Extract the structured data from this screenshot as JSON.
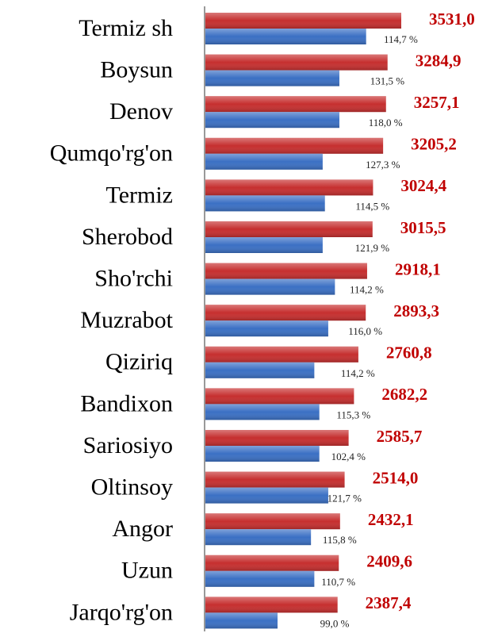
{
  "chart_data": {
    "type": "hbar",
    "categories": [
      "Termiz sh",
      "Boysun",
      "Denov",
      "Qumqo'rg'on",
      "Termiz",
      "Sherobod",
      "Sho'rchi",
      "Muzrabot",
      "Qiziriq",
      "Bandixon",
      "Sariosiyo",
      "Oltinsoy",
      "Angor",
      "Uzun",
      "Jarqo'rg'on"
    ],
    "series": [
      {
        "color": "#c62f2f",
        "values": [
          3531.0,
          3284.9,
          3257.1,
          3205.2,
          3024.4,
          3015.5,
          2918.1,
          2893.3,
          2760.8,
          2682.2,
          2585.7,
          2514.0,
          2432.1,
          2409.6,
          2387.4
        ],
        "value_labels": [
          "3531,0",
          "3284,9",
          "3257,1",
          "3205,2",
          "3024,4",
          "3015,5",
          "2918,1",
          "2893,3",
          "2760,8",
          "2682,2",
          "2585,7",
          "2514,0",
          "2432,1",
          "2409,6",
          "2387,4"
        ]
      },
      {
        "color": "#3b70c4",
        "values": [
          2900,
          2420,
          2420,
          2120,
          2160,
          2120,
          2340,
          2220,
          1970,
          2060,
          2060,
          2220,
          1910,
          1970,
          1310
        ]
      }
    ],
    "annotations": [
      "114,7 %",
      "131,5 %",
      "118,0 %",
      "127,3 %",
      "114,5 %",
      "121,9 %",
      "114,2 %",
      "116,0 %",
      "114,2 %",
      "115,3 %",
      "102,4 %",
      "121,7 %",
      "115,8 %",
      "110,7 %",
      "99,0 %"
    ],
    "xlim": [
      0,
      5000
    ]
  }
}
